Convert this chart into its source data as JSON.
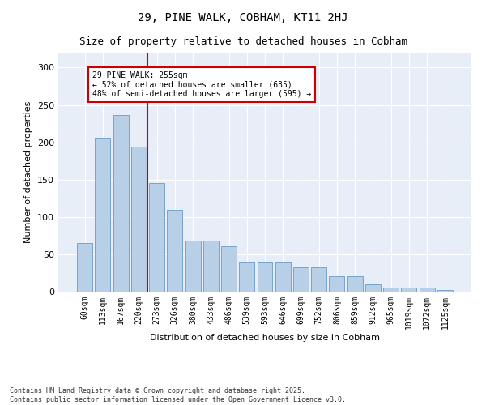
{
  "title": "29, PINE WALK, COBHAM, KT11 2HJ",
  "subtitle": "Size of property relative to detached houses in Cobham",
  "xlabel": "Distribution of detached houses by size in Cobham",
  "ylabel": "Number of detached properties",
  "categories": [
    "60sqm",
    "113sqm",
    "167sqm",
    "220sqm",
    "273sqm",
    "326sqm",
    "380sqm",
    "433sqm",
    "486sqm",
    "539sqm",
    "593sqm",
    "646sqm",
    "699sqm",
    "752sqm",
    "806sqm",
    "859sqm",
    "912sqm",
    "965sqm",
    "1019sqm",
    "1072sqm",
    "1125sqm"
  ],
  "values": [
    65,
    206,
    236,
    194,
    145,
    110,
    68,
    68,
    61,
    39,
    39,
    39,
    33,
    33,
    21,
    21,
    10,
    5,
    5,
    5,
    2
  ],
  "bar_color": "#b8cfe8",
  "bar_edge_color": "#6699cc",
  "vline_color": "#cc0000",
  "annotation_text": "29 PINE WALK: 255sqm\n← 52% of detached houses are smaller (635)\n48% of semi-detached houses are larger (595) →",
  "annotation_box_color": "#ffffff",
  "annotation_box_edge": "#cc0000",
  "ylim": [
    0,
    320
  ],
  "yticks": [
    0,
    50,
    100,
    150,
    200,
    250,
    300
  ],
  "bg_color": "#e8eef8",
  "footer": "Contains HM Land Registry data © Crown copyright and database right 2025.\nContains public sector information licensed under the Open Government Licence v3.0.",
  "title_fontsize": 10,
  "subtitle_fontsize": 9,
  "xlabel_fontsize": 8,
  "ylabel_fontsize": 8,
  "tick_fontsize": 7,
  "annotation_fontsize": 7,
  "footer_fontsize": 6
}
